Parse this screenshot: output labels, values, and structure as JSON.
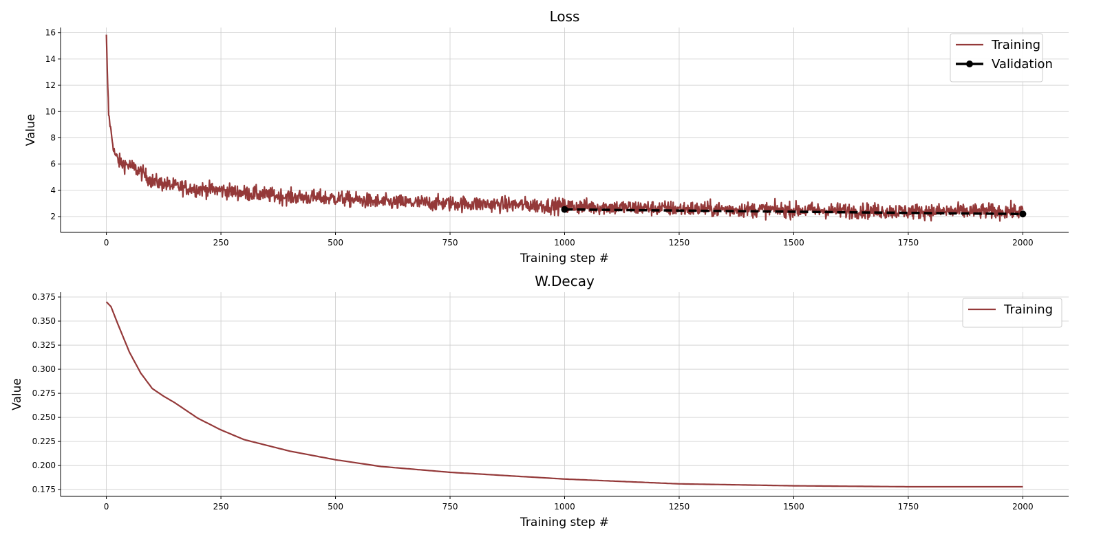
{
  "colors": {
    "training": "#943939",
    "validation": "#000000"
  },
  "chart_data": [
    {
      "type": "line",
      "title": "Loss",
      "xlabel": "Training step #",
      "ylabel": "Value",
      "xlim": [
        -100,
        2100
      ],
      "ylim": [
        0.8,
        16.4
      ],
      "xticks": [
        0,
        250,
        500,
        750,
        1000,
        1250,
        1500,
        1750,
        2000
      ],
      "yticks": [
        2,
        4,
        6,
        8,
        10,
        12,
        14,
        16
      ],
      "ytick_decimals": 0,
      "grid": true,
      "legend": "top-right",
      "series": [
        {
          "name": "Training",
          "style": "solid",
          "noise": 0.42,
          "x": [
            0,
            2,
            5,
            10,
            15,
            20,
            30,
            50,
            75,
            100,
            150,
            200,
            250,
            300,
            400,
            500,
            600,
            750,
            900,
            1000,
            1250,
            1500,
            1750,
            2000
          ],
          "y": [
            15.7,
            13.0,
            9.8,
            8.5,
            7.3,
            6.6,
            6.1,
            5.9,
            5.4,
            4.7,
            4.3,
            4.1,
            4.0,
            3.8,
            3.5,
            3.4,
            3.1,
            3.0,
            2.9,
            2.8,
            2.6,
            2.5,
            2.4,
            2.4
          ]
        },
        {
          "name": "Validation",
          "style": "dashed",
          "markers": "endpoints",
          "x": [
            1000,
            2000
          ],
          "y": [
            2.55,
            2.2
          ]
        }
      ]
    },
    {
      "type": "line",
      "title": "W.Decay",
      "xlabel": "Training step #",
      "ylabel": "Value",
      "xlim": [
        -100,
        2100
      ],
      "ylim": [
        0.168,
        0.38
      ],
      "xticks": [
        0,
        250,
        500,
        750,
        1000,
        1250,
        1500,
        1750,
        2000
      ],
      "yticks": [
        0.175,
        0.2,
        0.225,
        0.25,
        0.275,
        0.3,
        0.325,
        0.35,
        0.375
      ],
      "ytick_decimals": 3,
      "grid": true,
      "legend": "top-right",
      "series": [
        {
          "name": "Training",
          "style": "solid",
          "x": [
            0,
            10,
            25,
            50,
            75,
            100,
            125,
            150,
            200,
            250,
            300,
            400,
            500,
            600,
            750,
            1000,
            1250,
            1500,
            1750,
            2000
          ],
          "y": [
            0.37,
            0.365,
            0.347,
            0.318,
            0.296,
            0.28,
            0.272,
            0.265,
            0.249,
            0.237,
            0.227,
            0.215,
            0.206,
            0.199,
            0.193,
            0.186,
            0.181,
            0.179,
            0.178,
            0.178
          ]
        }
      ]
    }
  ]
}
